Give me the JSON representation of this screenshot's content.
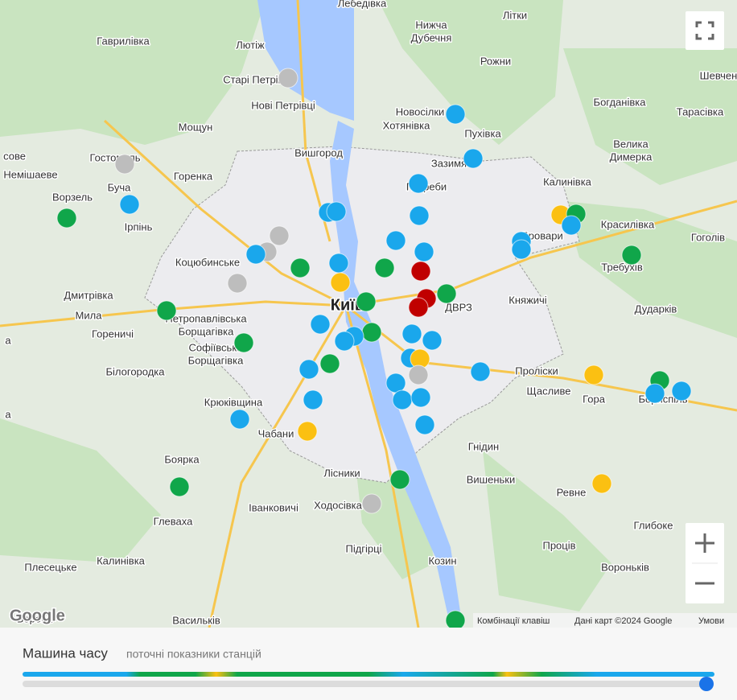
{
  "map": {
    "places": [
      "Лебедівка",
      "Нижча",
      "Дубечня",
      "Літки",
      "Гаврилівка",
      "Лютіж",
      "Старі Петрівці",
      "Нові Петрівці",
      "Шевчен",
      "Рожни",
      "Богданівка",
      "Тарасівка",
      "Новосілки",
      "Хотянівка",
      "Мощун",
      "Пухівка",
      "Велика",
      "Димерка",
      "Вишгород",
      "сове",
      "Гостомель",
      "Зазимя",
      "Немішаеве",
      "Горенка",
      "Калинівка",
      "Буча",
      "Погреби",
      "Ворзель",
      "Ірпінь",
      "Красилівка",
      "Бровари",
      "Гоголів",
      "Коцюбинське",
      "Требухів",
      "Дмитрівка",
      "Київ",
      "Княжичі",
      "ДВРЗ",
      "Дударків",
      "Мила",
      "Петропавлівська",
      "Борщагівка",
      "Гореничі",
      "а",
      "Софіївська",
      "Борщагівка",
      "Білогородка",
      "Проліски",
      "Щасливе",
      "Гора",
      "Бориспіль",
      "Крюківщина",
      "а",
      "Чабани",
      "Гнідин",
      "Боярка",
      "Лісники",
      "Вишеньки",
      "Ревне",
      "Ходосівка",
      "Іванковичі",
      "Глеваха",
      "Глибоке",
      "Плесецьке",
      "Калинівка",
      "Підгірці",
      "Проців",
      "Козин",
      "Вороньків",
      "Борова",
      "Васильків"
    ]
  },
  "controls": {
    "logo": "Google",
    "shortcuts": "Комбінації клавіш",
    "map_data": "Дані карт ©2024 Google",
    "terms": "Умови"
  },
  "panel": {
    "title": "Машина часу",
    "subtitle": "поточні показники станцій"
  }
}
